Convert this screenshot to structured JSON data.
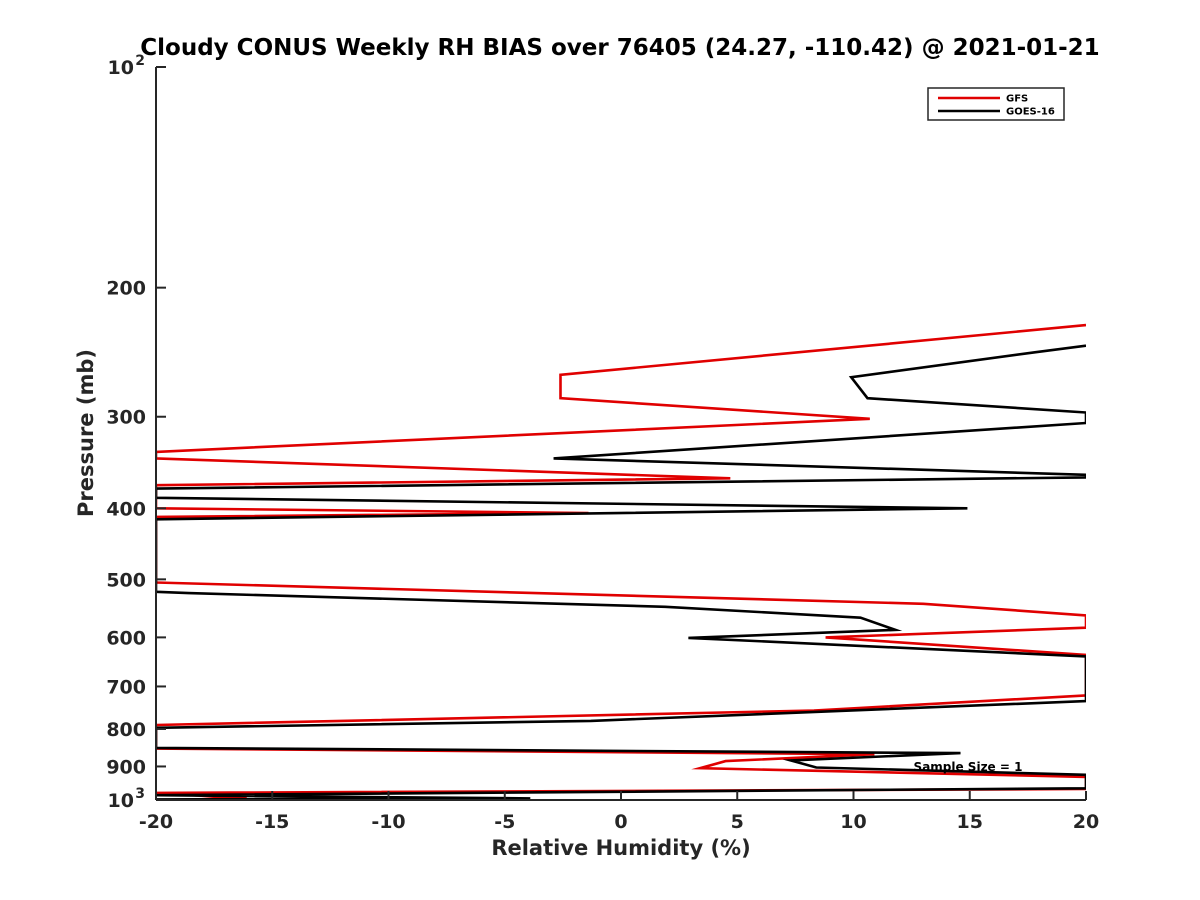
{
  "chart_data": {
    "type": "line",
    "title": "Cloudy CONUS Weekly RH BIAS over 76405 (24.27, -110.42) @ 2021-01-21",
    "xlabel": "Relative Humidity (%)",
    "ylabel": "Pressure (mb)",
    "xlim": [
      -20,
      20
    ],
    "ylim": [
      100,
      1000
    ],
    "y_scale": "log",
    "y_reversed": true,
    "x_ticks": [
      "-20",
      "-15",
      "-10",
      "-5",
      "0",
      "5",
      "10",
      "15",
      "20"
    ],
    "y_ticks": [
      {
        "value": 100,
        "base": "10",
        "exp": "2"
      },
      {
        "value": 200,
        "label": "200"
      },
      {
        "value": 300,
        "label": "300"
      },
      {
        "value": 400,
        "label": "400"
      },
      {
        "value": 500,
        "label": "500"
      },
      {
        "value": 600,
        "label": "600"
      },
      {
        "value": 700,
        "label": "700"
      },
      {
        "value": 800,
        "label": "800"
      },
      {
        "value": 900,
        "label": "900"
      },
      {
        "value": 1000,
        "base": "10",
        "exp": "3"
      }
    ],
    "grid": false,
    "legend_position": "top-right",
    "annotation": "Sample Size = 1",
    "series": [
      {
        "name": "GFS",
        "color": "#e00000",
        "points": [
          [
            20,
            225
          ],
          [
            -2.6,
            263
          ],
          [
            -2.6,
            283
          ],
          [
            10.7,
            302
          ],
          [
            -20,
            335
          ],
          [
            -20,
            342
          ],
          [
            4.7,
            364
          ],
          [
            -20,
            372
          ],
          [
            -20,
            400
          ],
          [
            -1.4,
            406
          ],
          [
            -20,
            411
          ],
          [
            -20,
            505
          ],
          [
            13,
            540
          ],
          [
            20,
            560
          ],
          [
            20,
            582
          ],
          [
            8.8,
            600
          ],
          [
            20,
            634
          ],
          [
            20,
            720
          ],
          [
            8.3,
            755
          ],
          [
            -20,
            790
          ],
          [
            -20,
            851
          ],
          [
            10.9,
            866
          ],
          [
            4.5,
            885
          ],
          [
            3.4,
            905
          ],
          [
            20,
            930
          ],
          [
            20,
            966
          ],
          [
            -20,
            978
          ],
          [
            -16.1,
            995
          ],
          [
            -20,
            1000
          ]
        ]
      },
      {
        "name": "GOES-16",
        "color": "#000000",
        "points": [
          [
            20,
            240
          ],
          [
            17.8,
            245
          ],
          [
            9.9,
            265
          ],
          [
            10.6,
            283
          ],
          [
            20,
            296
          ],
          [
            20,
            306
          ],
          [
            -2.9,
            342
          ],
          [
            20,
            360
          ],
          [
            20,
            363
          ],
          [
            -20,
            376
          ],
          [
            -20,
            387
          ],
          [
            14.9,
            400
          ],
          [
            -20,
            414
          ],
          [
            -20,
            520
          ],
          [
            -18.6,
            522
          ],
          [
            1.9,
            545
          ],
          [
            10.3,
            564
          ],
          [
            11.8,
            586
          ],
          [
            2.9,
            601
          ],
          [
            20,
            637
          ],
          [
            20,
            733
          ],
          [
            -1.3,
            780
          ],
          [
            -20,
            797
          ],
          [
            -20,
            849
          ],
          [
            14.6,
            863
          ],
          [
            7.3,
            883
          ],
          [
            8.4,
            903
          ],
          [
            20,
            924
          ],
          [
            20,
            964
          ],
          [
            -20,
            985
          ],
          [
            -3.9,
            995
          ],
          [
            -20,
            998
          ]
        ]
      }
    ]
  }
}
